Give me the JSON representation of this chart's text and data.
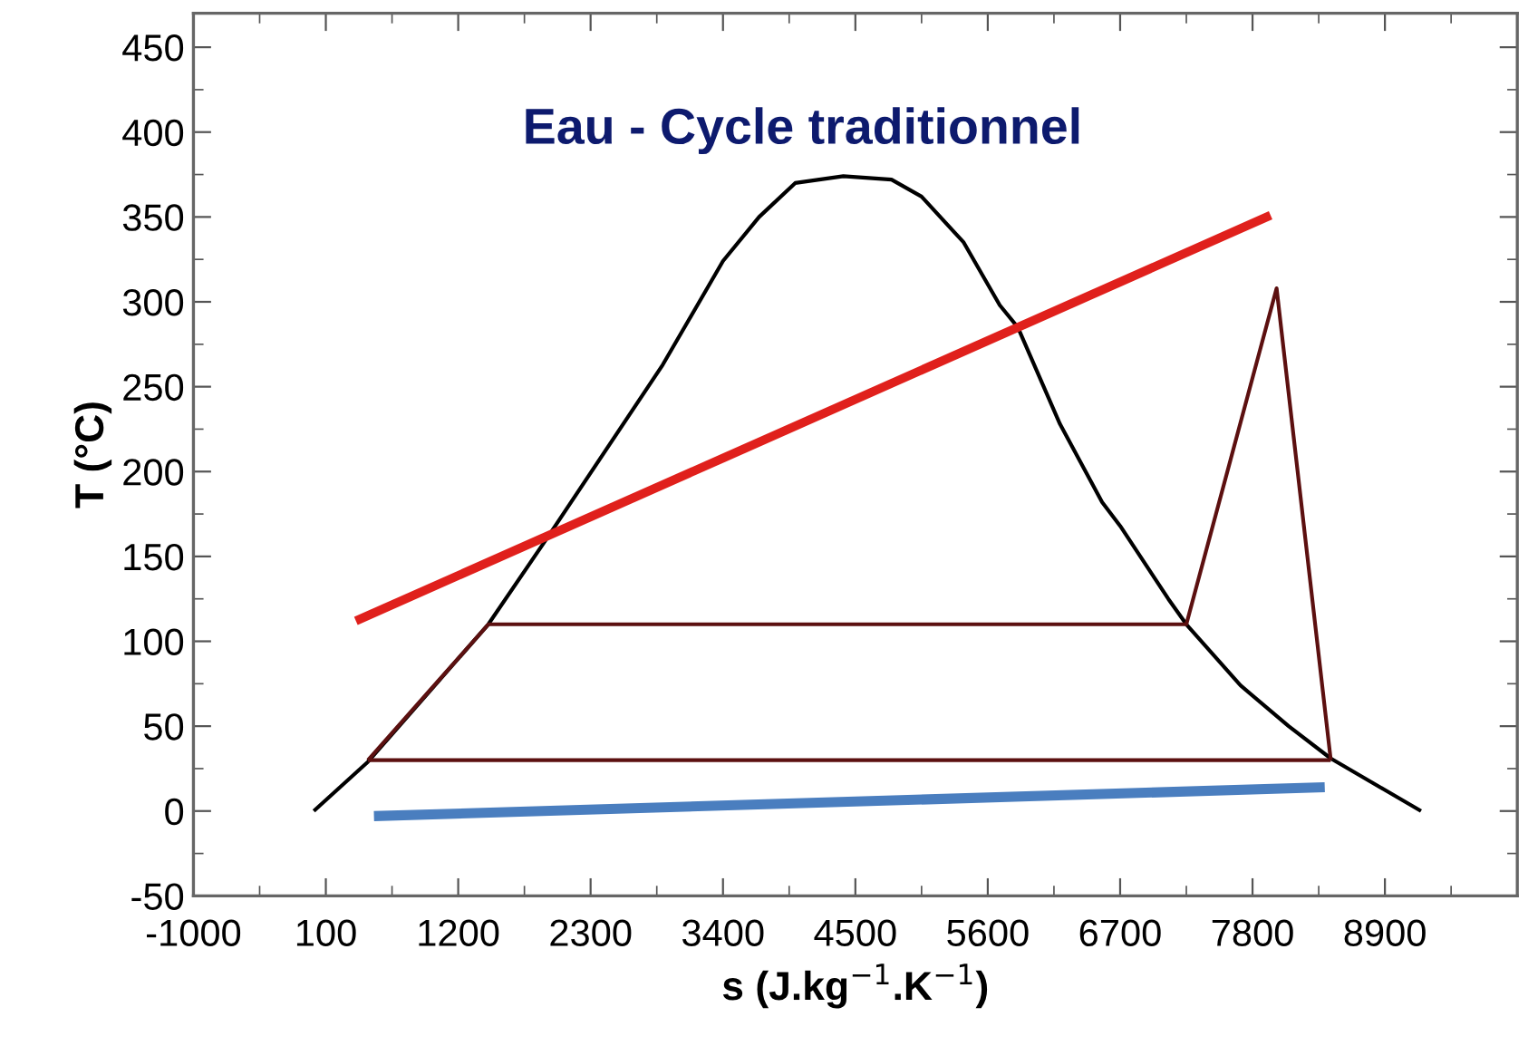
{
  "chart_data": {
    "type": "line",
    "title": "Eau - Cycle traditionnel",
    "xlabel": "s (J.kg$^{−1}$.K$^{−1}$)",
    "ylabel": "T (°C)",
    "xlim": [
      -1000,
      10000
    ],
    "ylim": [
      -50,
      470
    ],
    "xticks": [
      -1000,
      {
        "value": -450,
        "label": null
      },
      100,
      {
        "value": 650,
        "label": null
      },
      1200,
      {
        "value": 1750,
        "label": null
      },
      2300,
      {
        "value": 2850,
        "label": null
      },
      3400,
      {
        "value": 3950,
        "label": null
      },
      4500,
      {
        "value": 5050,
        "label": null
      },
      5600,
      {
        "value": 6150,
        "label": null
      },
      6700,
      {
        "value": 7250,
        "label": null
      },
      7800,
      {
        "value": 8350,
        "label": null
      },
      8900,
      {
        "value": 9450,
        "label": null
      }
    ],
    "yticks": [
      -50,
      {
        "value": -25,
        "label": null
      },
      0,
      {
        "value": 25,
        "label": null
      },
      50,
      {
        "value": 75,
        "label": null
      },
      100,
      {
        "value": 125,
        "label": null
      },
      150,
      {
        "value": 175,
        "label": null
      },
      200,
      {
        "value": 225,
        "label": null
      },
      250,
      {
        "value": 275,
        "label": null
      },
      300,
      {
        "value": 325,
        "label": null
      },
      350,
      {
        "value": 375,
        "label": null
      },
      400,
      {
        "value": 425,
        "label": null
      },
      450
    ],
    "grid": false,
    "legend": false,
    "marker": "none",
    "line_style": "solid",
    "series": [
      {
        "color": "#000000",
        "x": [
          0,
          450,
          1450,
          1950,
          2900,
          3400,
          3700,
          4000,
          4400,
          4800,
          5050,
          5400,
          5700,
          5850,
          6200,
          6550,
          6700,
          7100,
          7250,
          7700,
          8100,
          8450,
          9200
        ],
        "values": [
          0,
          29,
          110,
          162,
          263,
          324,
          350,
          370,
          374,
          372,
          362,
          335,
          298,
          285,
          228,
          182,
          168,
          125,
          110,
          74,
          50,
          31,
          0
        ]
      },
      {
        "color": "#5c1010",
        "x": [
          450,
          1450,
          7250,
          8000,
          8450
        ],
        "values": [
          30,
          110,
          110,
          308,
          30
        ]
      },
      {
        "color": "#5c1010",
        "x": [
          450,
          8450
        ],
        "values": [
          30,
          30
        ]
      },
      {
        "color": "#e0201c",
        "x": [
          350,
          7950
        ],
        "values": [
          112,
          351
        ]
      },
      {
        "color": "#4a7ebf",
        "x": [
          500,
          8400
        ],
        "values": [
          -3,
          14
        ]
      }
    ]
  }
}
